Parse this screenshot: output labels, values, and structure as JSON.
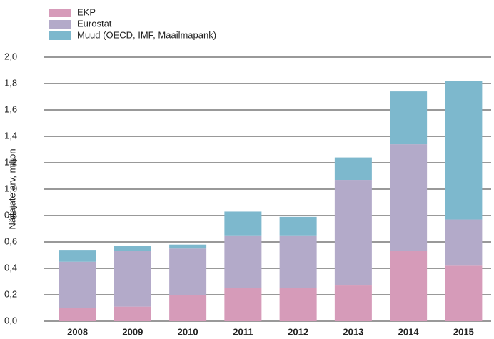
{
  "chart_data": {
    "type": "stacked_bar",
    "y_label": "Näitajate arv, miljon",
    "categories": [
      "2008",
      "2009",
      "2010",
      "2011",
      "2012",
      "2013",
      "2014",
      "2015"
    ],
    "series": [
      {
        "name": "EKP",
        "color": "#d69bb9",
        "values": [
          0.1,
          0.11,
          0.2,
          0.25,
          0.25,
          0.27,
          0.53,
          0.42
        ]
      },
      {
        "name": "Eurostat",
        "color": "#b3aac9",
        "values": [
          0.35,
          0.42,
          0.35,
          0.4,
          0.4,
          0.8,
          0.81,
          0.35
        ]
      },
      {
        "name": "Muud (OECD, IMF, Maailmapank)",
        "color": "#7db8cd",
        "values": [
          0.09,
          0.04,
          0.03,
          0.18,
          0.14,
          0.17,
          0.4,
          1.05
        ]
      }
    ],
    "ylim": [
      0,
      2
    ],
    "yticks": [
      {
        "value": 0,
        "label": "0,0"
      },
      {
        "value": 0.2,
        "label": "0,2"
      },
      {
        "value": 0.4,
        "label": "0,4"
      },
      {
        "value": 0.6,
        "label": "0,6"
      },
      {
        "value": 0.8,
        "label": "0,8"
      },
      {
        "value": 1.0,
        "label": "1,0"
      },
      {
        "value": 1.2,
        "label": "1,2"
      },
      {
        "value": 1.4,
        "label": "1,4"
      },
      {
        "value": 1.6,
        "label": "1,6"
      },
      {
        "value": 1.8,
        "label": "1,8"
      },
      {
        "value": 2.0,
        "label": "2,0"
      }
    ],
    "grid": true
  }
}
